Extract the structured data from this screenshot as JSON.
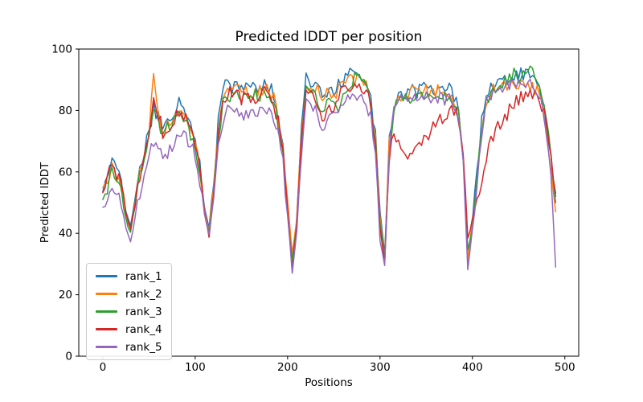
{
  "chart_data": {
    "type": "line",
    "title": "Predicted lDDT per position",
    "xlabel": "Positions",
    "ylabel": "Predicted lDDT",
    "xlim": [
      -26,
      515
    ],
    "ylim": [
      0,
      100
    ],
    "x_ticks": [
      0,
      100,
      200,
      300,
      400,
      500
    ],
    "y_ticks": [
      0,
      20,
      40,
      60,
      80,
      100
    ],
    "grid": false,
    "legend_position": "lower left",
    "background": "#ffffff",
    "axis_color": "#000000",
    "line_width": 1.5,
    "noise_amplitude": 2.3,
    "x": [
      0,
      5,
      10,
      15,
      20,
      25,
      30,
      35,
      40,
      45,
      50,
      55,
      60,
      65,
      70,
      75,
      80,
      85,
      90,
      95,
      100,
      105,
      110,
      115,
      120,
      125,
      130,
      135,
      140,
      145,
      150,
      155,
      160,
      165,
      170,
      175,
      180,
      185,
      190,
      195,
      200,
      205,
      210,
      215,
      220,
      225,
      230,
      235,
      240,
      245,
      250,
      255,
      260,
      265,
      270,
      275,
      280,
      285,
      290,
      295,
      300,
      305,
      310,
      315,
      320,
      325,
      330,
      335,
      340,
      345,
      350,
      355,
      360,
      365,
      370,
      375,
      380,
      385,
      390,
      395,
      400,
      405,
      410,
      415,
      420,
      425,
      430,
      435,
      440,
      445,
      450,
      455,
      460,
      465,
      470,
      475,
      480,
      485,
      490
    ],
    "series": [
      {
        "name": "rank_1",
        "color": "#1f77b4",
        "values": [
          53,
          58,
          66,
          60,
          57,
          47,
          42,
          52,
          60,
          67,
          73,
          81,
          78,
          74,
          76,
          78,
          82,
          83,
          80,
          75,
          72,
          62,
          50,
          41,
          57,
          76,
          86,
          90,
          88,
          89,
          87,
          88,
          86,
          88,
          87,
          89,
          88,
          85,
          78,
          68,
          50,
          29,
          45,
          74,
          90,
          88,
          89,
          86,
          85,
          87,
          86,
          88,
          89,
          91,
          93,
          94,
          92,
          90,
          84,
          72,
          48,
          33,
          70,
          82,
          85,
          86,
          85,
          87,
          86,
          87,
          88,
          86,
          87,
          88,
          86,
          87,
          85,
          81,
          67,
          30,
          44,
          60,
          76,
          84,
          87,
          88,
          89,
          90,
          91,
          91,
          92,
          92,
          93,
          91,
          88,
          84,
          76,
          64,
          50
        ]
      },
      {
        "name": "rank_2",
        "color": "#ff7f0e",
        "values": [
          54,
          57,
          63,
          58,
          55,
          46,
          41,
          51,
          59,
          66,
          74,
          91,
          80,
          73,
          75,
          77,
          80,
          81,
          79,
          74,
          71,
          61,
          49,
          40,
          56,
          74,
          85,
          88,
          87,
          88,
          86,
          87,
          85,
          86,
          86,
          88,
          87,
          84,
          77,
          67,
          49,
          34,
          44,
          73,
          88,
          87,
          88,
          85,
          84,
          86,
          85,
          87,
          88,
          89,
          90,
          90,
          89,
          88,
          83,
          71,
          46,
          32,
          69,
          81,
          84,
          85,
          84,
          86,
          85,
          86,
          87,
          85,
          86,
          87,
          85,
          86,
          84,
          80,
          66,
          32,
          43,
          59,
          75,
          83,
          86,
          87,
          87,
          88,
          89,
          88,
          89,
          90,
          89,
          88,
          86,
          82,
          74,
          62,
          47
        ]
      },
      {
        "name": "rank_3",
        "color": "#2ca02c",
        "values": [
          50,
          55,
          60,
          56,
          53,
          45,
          40,
          50,
          58,
          65,
          72,
          80,
          77,
          72,
          74,
          76,
          78,
          79,
          77,
          72,
          69,
          59,
          47,
          40,
          54,
          71,
          82,
          85,
          84,
          86,
          84,
          85,
          83,
          85,
          84,
          86,
          85,
          82,
          75,
          65,
          47,
          31,
          42,
          70,
          86,
          85,
          85,
          82,
          80,
          84,
          81,
          79,
          86,
          88,
          90,
          91,
          90,
          88,
          82,
          70,
          44,
          31,
          68,
          80,
          83,
          84,
          83,
          85,
          84,
          85,
          86,
          84,
          85,
          86,
          84,
          85,
          83,
          79,
          64,
          34,
          42,
          58,
          74,
          83,
          86,
          88,
          89,
          90,
          91,
          92,
          91,
          92,
          93,
          92,
          90,
          85,
          77,
          65,
          52
        ]
      },
      {
        "name": "rank_4",
        "color": "#d62728",
        "values": [
          52,
          58,
          64,
          59,
          56,
          46,
          41,
          51,
          59,
          66,
          73,
          85,
          79,
          73,
          75,
          76,
          79,
          80,
          78,
          73,
          70,
          60,
          47,
          38,
          54,
          72,
          83,
          86,
          85,
          86,
          84,
          85,
          83,
          84,
          84,
          86,
          85,
          82,
          76,
          66,
          48,
          28,
          43,
          71,
          87,
          85,
          84,
          79,
          77,
          82,
          81,
          84,
          86,
          87,
          88,
          88,
          88,
          87,
          81,
          69,
          42,
          30,
          65,
          72,
          70,
          67,
          66,
          67,
          68,
          70,
          72,
          73,
          75,
          77,
          79,
          80,
          80,
          78,
          65,
          38,
          45,
          50,
          58,
          64,
          70,
          73,
          76,
          78,
          80,
          82,
          84,
          85,
          85,
          86,
          84,
          82,
          75,
          64,
          53
        ]
      },
      {
        "name": "rank_5",
        "color": "#9467bd",
        "values": [
          48,
          51,
          55,
          52,
          50,
          42,
          37,
          46,
          53,
          59,
          64,
          70,
          68,
          64,
          66,
          68,
          70,
          72,
          71,
          68,
          66,
          57,
          46,
          39,
          52,
          68,
          77,
          80,
          79,
          80,
          78,
          80,
          78,
          79,
          79,
          81,
          80,
          78,
          72,
          63,
          46,
          27,
          40,
          66,
          82,
          80,
          80,
          76,
          74,
          79,
          79,
          81,
          82,
          84,
          85,
          85,
          84,
          83,
          78,
          67,
          38,
          30,
          67,
          80,
          83,
          84,
          83,
          84,
          83,
          84,
          85,
          83,
          84,
          85,
          83,
          84,
          82,
          78,
          62,
          28,
          41,
          57,
          73,
          82,
          85,
          86,
          86,
          87,
          88,
          89,
          88,
          89,
          90,
          89,
          87,
          83,
          74,
          60,
          29
        ]
      }
    ]
  }
}
